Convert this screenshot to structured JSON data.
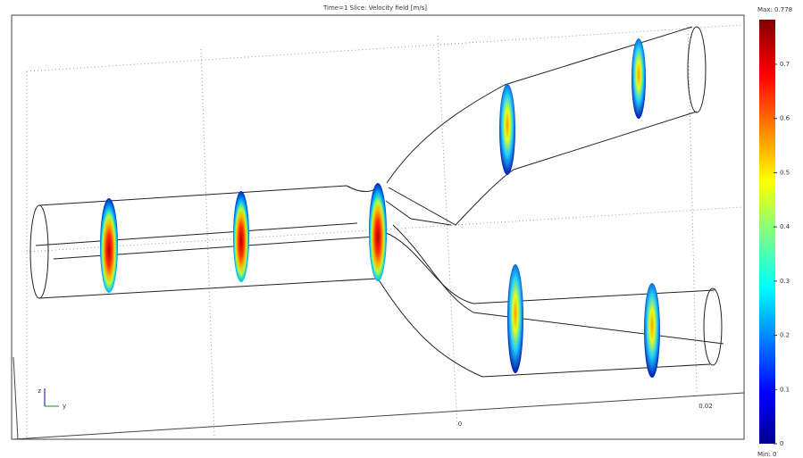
{
  "header": {
    "title": "Time=1    Slice: Velocity field [m/s]"
  },
  "colorbar": {
    "max_label": "Max: 0.778",
    "min_label": "Min: 0",
    "ticks": [
      "0.7",
      "0.6",
      "0.5",
      "0.4",
      "0.3",
      "0.2",
      "0.1",
      "0"
    ]
  },
  "axes": {
    "x_labels": [
      "0",
      "0.02"
    ],
    "triad": [
      "z",
      "y"
    ]
  }
}
